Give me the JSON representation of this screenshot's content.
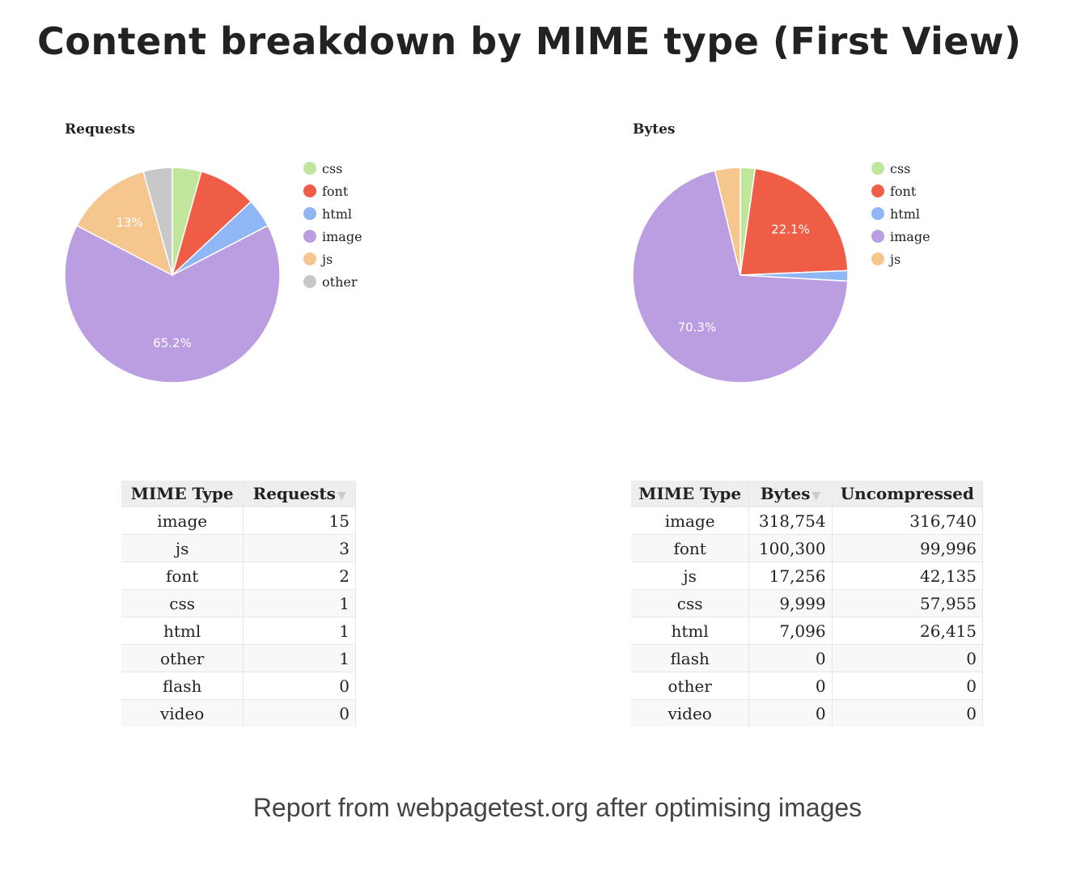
{
  "page_title": "Content breakdown by MIME type (First View)",
  "caption": "Report from webpagetest.org after optimising images",
  "charts": {
    "requests": {
      "title": "Requests"
    },
    "bytes": {
      "title": "Bytes"
    }
  },
  "colors": {
    "css": "#bfe69a",
    "font": "#ef5d47",
    "html": "#8fb6f5",
    "image": "#bb9de2",
    "js": "#f5c68e",
    "other": "#c8c8c8"
  },
  "chart_data": [
    {
      "type": "pie",
      "title": "Requests",
      "legend_position": "right",
      "categories": [
        "css",
        "font",
        "html",
        "image",
        "js",
        "other"
      ],
      "values": [
        1,
        2,
        1,
        15,
        3,
        1
      ],
      "data_labels": [
        {
          "category": "image",
          "text": "65.2%"
        },
        {
          "category": "js",
          "text": "13%"
        }
      ]
    },
    {
      "type": "pie",
      "title": "Bytes",
      "legend_position": "right",
      "categories": [
        "css",
        "font",
        "html",
        "image",
        "js"
      ],
      "values": [
        9999,
        100300,
        7096,
        318754,
        17256
      ],
      "data_labels": [
        {
          "category": "font",
          "text": "22.1%"
        },
        {
          "category": "image",
          "text": "70.3%"
        }
      ]
    }
  ],
  "requests_table": {
    "headers": [
      "MIME Type",
      "Requests"
    ],
    "sort_indicator": "▼",
    "rows": [
      [
        "image",
        "15"
      ],
      [
        "js",
        "3"
      ],
      [
        "font",
        "2"
      ],
      [
        "css",
        "1"
      ],
      [
        "html",
        "1"
      ],
      [
        "other",
        "1"
      ],
      [
        "flash",
        "0"
      ],
      [
        "video",
        "0"
      ]
    ]
  },
  "bytes_table": {
    "headers": [
      "MIME Type",
      "Bytes",
      "Uncompressed"
    ],
    "sort_indicator": "▼",
    "rows": [
      [
        "image",
        "318,754",
        "316,740"
      ],
      [
        "font",
        "100,300",
        "99,996"
      ],
      [
        "js",
        "17,256",
        "42,135"
      ],
      [
        "css",
        "9,999",
        "57,955"
      ],
      [
        "html",
        "7,096",
        "26,415"
      ],
      [
        "flash",
        "0",
        "0"
      ],
      [
        "other",
        "0",
        "0"
      ],
      [
        "video",
        "0",
        "0"
      ]
    ]
  }
}
